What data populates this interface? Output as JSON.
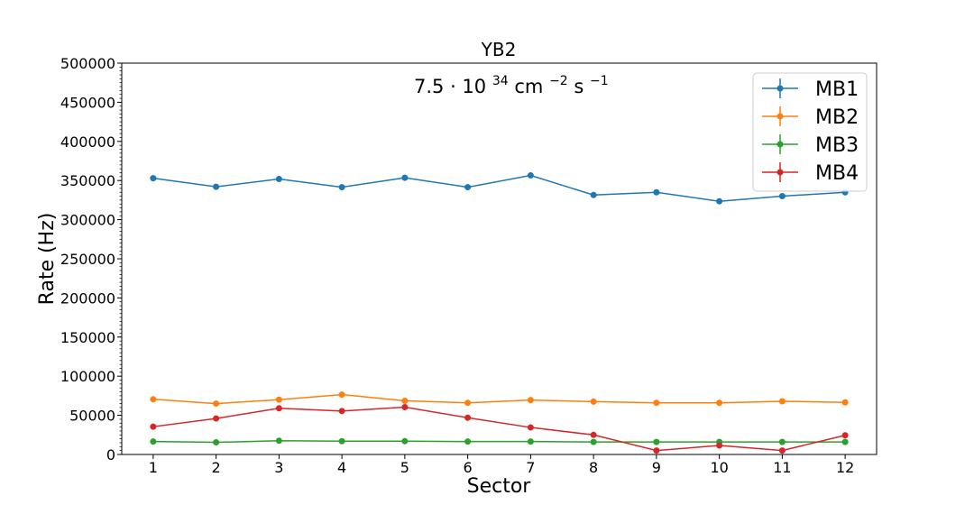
{
  "chart_data": {
    "type": "line",
    "title": "YB2",
    "annotation": {
      "base": "7.5 · 10",
      "exp1": "34",
      "mid": "cm",
      "exp2": "−2",
      "mid2": "s",
      "exp3": "−1"
    },
    "xlabel": "Sector",
    "ylabel": "Rate (Hz)",
    "x": [
      1,
      2,
      3,
      4,
      5,
      6,
      7,
      8,
      9,
      10,
      11,
      12
    ],
    "xlim": [
      0.5,
      12.5
    ],
    "ylim": [
      0,
      500000
    ],
    "yticks": [
      0,
      50000,
      100000,
      150000,
      200000,
      250000,
      300000,
      350000,
      400000,
      450000,
      500000
    ],
    "grid": false,
    "legend_position": "top-right",
    "series": [
      {
        "name": "MB1",
        "color": "#1f77b4",
        "values": [
          353000,
          342000,
          352000,
          341500,
          353500,
          341500,
          356500,
          331500,
          335000,
          323500,
          330000,
          335000
        ]
      },
      {
        "name": "MB2",
        "color": "#ff7f0e",
        "values": [
          70500,
          65000,
          70000,
          76500,
          68500,
          66000,
          69500,
          67500,
          66000,
          66000,
          68000,
          66500
        ]
      },
      {
        "name": "MB3",
        "color": "#2ca02c",
        "values": [
          16500,
          15500,
          17500,
          17000,
          17000,
          16500,
          16500,
          16000,
          16000,
          16000,
          16000,
          16000
        ]
      },
      {
        "name": "MB4",
        "color": "#d62728",
        "values": [
          35500,
          46000,
          59000,
          55500,
          60500,
          47000,
          34500,
          25000,
          5000,
          11500,
          5000,
          24500
        ]
      }
    ]
  }
}
